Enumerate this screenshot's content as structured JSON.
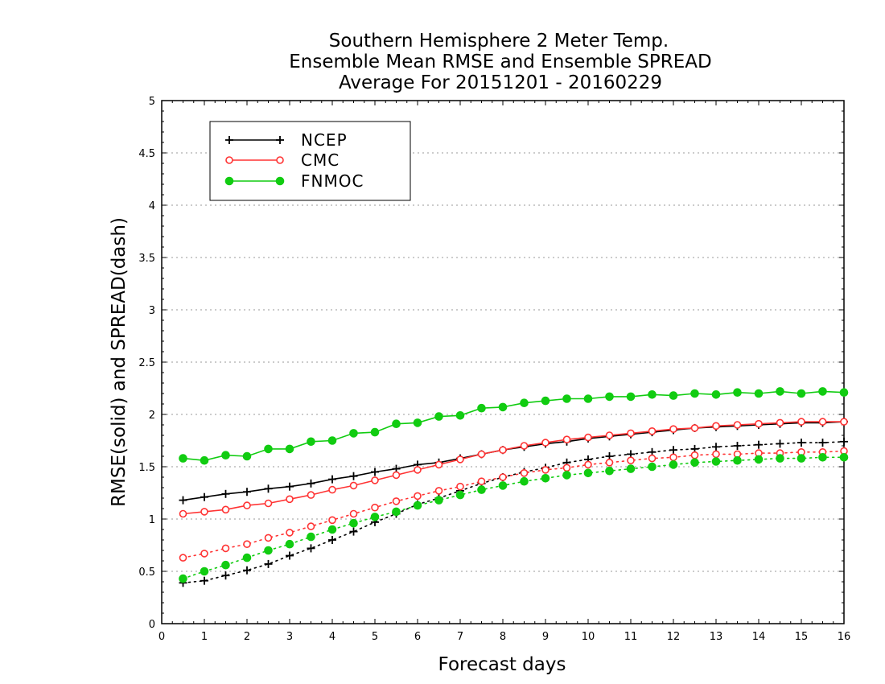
{
  "chart_data": {
    "type": "line",
    "title_lines": [
      "Southern Hemisphere 2 Meter Temp.",
      "Ensemble Mean RMSE and Ensemble SPREAD",
      "Average For 20151201 - 20160229"
    ],
    "xlabel": "Forecast days",
    "ylabel": "RMSE(solid) and SPREAD(dash)",
    "xlim": [
      0,
      16
    ],
    "ylim": [
      0,
      5
    ],
    "xticks": [
      "0",
      "1",
      "2",
      "3",
      "4",
      "5",
      "6",
      "7",
      "8",
      "9",
      "10",
      "11",
      "12",
      "13",
      "14",
      "15",
      "16"
    ],
    "yticks": [
      "0",
      "0.5",
      "1",
      "1.5",
      "2",
      "2.5",
      "3",
      "3.5",
      "4",
      "4.5",
      "5"
    ],
    "grid": "horizontal dotted",
    "legend_position": "top-left",
    "x": [
      0.5,
      1,
      1.5,
      2,
      2.5,
      3,
      3.5,
      4,
      4.5,
      5,
      5.5,
      6,
      6.5,
      7,
      7.5,
      8,
      8.5,
      9,
      9.5,
      10,
      10.5,
      11,
      11.5,
      12,
      12.5,
      13,
      13.5,
      14,
      14.5,
      15,
      15.5,
      16
    ],
    "series": [
      {
        "name": "NCEP",
        "color": "#000000",
        "marker": "plus",
        "rmse": [
          1.18,
          1.21,
          1.24,
          1.26,
          1.29,
          1.31,
          1.34,
          1.38,
          1.41,
          1.45,
          1.48,
          1.52,
          1.54,
          1.58,
          1.62,
          1.66,
          1.69,
          1.72,
          1.74,
          1.77,
          1.79,
          1.81,
          1.83,
          1.85,
          1.87,
          1.88,
          1.89,
          1.9,
          1.91,
          1.92,
          1.92,
          1.93
        ],
        "spread": [
          0.39,
          0.41,
          0.46,
          0.51,
          0.57,
          0.65,
          0.72,
          0.8,
          0.88,
          0.97,
          1.05,
          1.14,
          1.2,
          1.27,
          1.34,
          1.4,
          1.45,
          1.49,
          1.54,
          1.57,
          1.6,
          1.62,
          1.64,
          1.66,
          1.67,
          1.69,
          1.7,
          1.71,
          1.72,
          1.73,
          1.73,
          1.74
        ]
      },
      {
        "name": "CMC",
        "color": "#ff3333",
        "marker": "open-circle",
        "rmse": [
          1.05,
          1.07,
          1.09,
          1.13,
          1.15,
          1.19,
          1.23,
          1.28,
          1.32,
          1.37,
          1.42,
          1.47,
          1.52,
          1.57,
          1.62,
          1.66,
          1.7,
          1.73,
          1.76,
          1.78,
          1.8,
          1.82,
          1.84,
          1.86,
          1.87,
          1.89,
          1.9,
          1.91,
          1.92,
          1.93,
          1.93,
          1.93
        ],
        "spread": [
          0.63,
          0.67,
          0.72,
          0.76,
          0.82,
          0.87,
          0.93,
          0.99,
          1.05,
          1.11,
          1.17,
          1.22,
          1.27,
          1.31,
          1.36,
          1.4,
          1.44,
          1.47,
          1.49,
          1.52,
          1.54,
          1.56,
          1.58,
          1.59,
          1.61,
          1.62,
          1.62,
          1.63,
          1.63,
          1.64,
          1.64,
          1.65
        ]
      },
      {
        "name": "FNMOC",
        "color": "#11cc11",
        "marker": "filled-circle",
        "rmse": [
          1.58,
          1.56,
          1.61,
          1.6,
          1.67,
          1.67,
          1.74,
          1.75,
          1.82,
          1.83,
          1.91,
          1.92,
          1.98,
          1.99,
          2.06,
          2.07,
          2.11,
          2.13,
          2.15,
          2.15,
          2.17,
          2.17,
          2.19,
          2.18,
          2.2,
          2.19,
          2.21,
          2.2,
          2.22,
          2.2,
          2.22,
          2.21
        ],
        "spread": [
          0.43,
          0.5,
          0.56,
          0.63,
          0.7,
          0.76,
          0.83,
          0.9,
          0.96,
          1.02,
          1.07,
          1.13,
          1.18,
          1.23,
          1.28,
          1.32,
          1.36,
          1.39,
          1.42,
          1.44,
          1.46,
          1.48,
          1.5,
          1.52,
          1.54,
          1.55,
          1.56,
          1.57,
          1.58,
          1.58,
          1.59,
          1.59
        ]
      }
    ]
  }
}
